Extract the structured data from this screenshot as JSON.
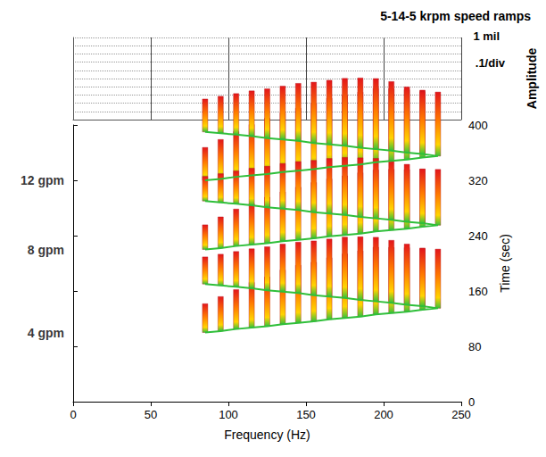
{
  "chart_data": {
    "type": "waterfall",
    "title": "5-14-5 krpm speed ramps",
    "x_label": "Frequency (Hz)",
    "y_label": "Time (sec)",
    "z_label": "Amplitude",
    "annotations": [
      "1 mil",
      ".1/div"
    ],
    "xlim": [
      0,
      250
    ],
    "xticks": [
      0,
      50,
      100,
      150,
      200,
      250
    ],
    "ylim": [
      0,
      400
    ],
    "yticks": [
      0,
      80,
      160,
      240,
      320,
      400
    ],
    "zlim": [
      0,
      1
    ],
    "zticks": [
      0,
      0.1,
      0.2,
      0.3,
      0.4,
      0.5,
      0.6,
      0.7,
      0.8,
      0.9,
      1
    ],
    "grid": true,
    "series": [
      {
        "name": "4 gpm",
        "values": [
          [
            85,
            100,
            0.35
          ],
          [
            95,
            102,
            0.42
          ],
          [
            105,
            105,
            0.48
          ],
          [
            115,
            107,
            0.55
          ],
          [
            125,
            109,
            0.6
          ],
          [
            135,
            112,
            0.66
          ],
          [
            145,
            114,
            0.7
          ],
          [
            155,
            116,
            0.72
          ],
          [
            165,
            119,
            0.75
          ],
          [
            175,
            121,
            0.78
          ],
          [
            185,
            123,
            0.8
          ],
          [
            195,
            126,
            0.82
          ],
          [
            205,
            128,
            0.8
          ],
          [
            215,
            130,
            0.78
          ],
          [
            225,
            133,
            0.75
          ],
          [
            235,
            135,
            0.72
          ],
          [
            225,
            138,
            0.7
          ],
          [
            215,
            140,
            0.74
          ],
          [
            205,
            143,
            0.76
          ],
          [
            195,
            145,
            0.78
          ],
          [
            185,
            147,
            0.77
          ],
          [
            175,
            150,
            0.74
          ],
          [
            165,
            152,
            0.7
          ],
          [
            155,
            154,
            0.66
          ],
          [
            145,
            157,
            0.62
          ],
          [
            135,
            159,
            0.58
          ],
          [
            125,
            161,
            0.53
          ],
          [
            115,
            164,
            0.48
          ],
          [
            105,
            166,
            0.43
          ],
          [
            95,
            168,
            0.38
          ],
          [
            85,
            170,
            0.33
          ]
        ]
      },
      {
        "name": "8 gpm",
        "values": [
          [
            85,
            220,
            0.3
          ],
          [
            95,
            222,
            0.38
          ],
          [
            105,
            225,
            0.45
          ],
          [
            115,
            227,
            0.5
          ],
          [
            125,
            229,
            0.56
          ],
          [
            135,
            232,
            0.6
          ],
          [
            145,
            234,
            0.64
          ],
          [
            155,
            236,
            0.68
          ],
          [
            165,
            239,
            0.7
          ],
          [
            175,
            241,
            0.72
          ],
          [
            185,
            243,
            0.74
          ],
          [
            195,
            246,
            0.75
          ],
          [
            205,
            248,
            0.74
          ],
          [
            215,
            250,
            0.72
          ],
          [
            225,
            253,
            0.7
          ],
          [
            235,
            255,
            0.68
          ],
          [
            225,
            258,
            0.66
          ],
          [
            215,
            260,
            0.7
          ],
          [
            205,
            263,
            0.72
          ],
          [
            195,
            265,
            0.73
          ],
          [
            185,
            267,
            0.72
          ],
          [
            175,
            270,
            0.7
          ],
          [
            165,
            272,
            0.67
          ],
          [
            155,
            274,
            0.63
          ],
          [
            145,
            277,
            0.59
          ],
          [
            135,
            279,
            0.55
          ],
          [
            125,
            281,
            0.5
          ],
          [
            115,
            284,
            0.45
          ],
          [
            105,
            286,
            0.4
          ],
          [
            95,
            288,
            0.35
          ],
          [
            85,
            290,
            0.3
          ]
        ]
      },
      {
        "name": "12 gpm",
        "values": [
          [
            85,
            320,
            0.4
          ],
          [
            95,
            322,
            0.48
          ],
          [
            105,
            325,
            0.55
          ],
          [
            115,
            327,
            0.62
          ],
          [
            125,
            329,
            0.68
          ],
          [
            135,
            332,
            0.72
          ],
          [
            145,
            334,
            0.76
          ],
          [
            155,
            336,
            0.8
          ],
          [
            165,
            339,
            0.84
          ],
          [
            175,
            341,
            0.86
          ],
          [
            185,
            343,
            0.88
          ],
          [
            195,
            346,
            0.9
          ],
          [
            205,
            348,
            0.88
          ],
          [
            215,
            350,
            0.85
          ],
          [
            225,
            353,
            0.82
          ],
          [
            235,
            355,
            0.78
          ],
          [
            225,
            358,
            0.76
          ],
          [
            215,
            360,
            0.8
          ],
          [
            205,
            363,
            0.84
          ],
          [
            195,
            365,
            0.86
          ],
          [
            185,
            367,
            0.85
          ],
          [
            175,
            370,
            0.82
          ],
          [
            165,
            372,
            0.78
          ],
          [
            155,
            374,
            0.74
          ],
          [
            145,
            377,
            0.7
          ],
          [
            135,
            379,
            0.65
          ],
          [
            125,
            381,
            0.6
          ],
          [
            115,
            384,
            0.55
          ],
          [
            105,
            386,
            0.5
          ],
          [
            95,
            388,
            0.45
          ],
          [
            85,
            390,
            0.4
          ]
        ]
      }
    ]
  }
}
